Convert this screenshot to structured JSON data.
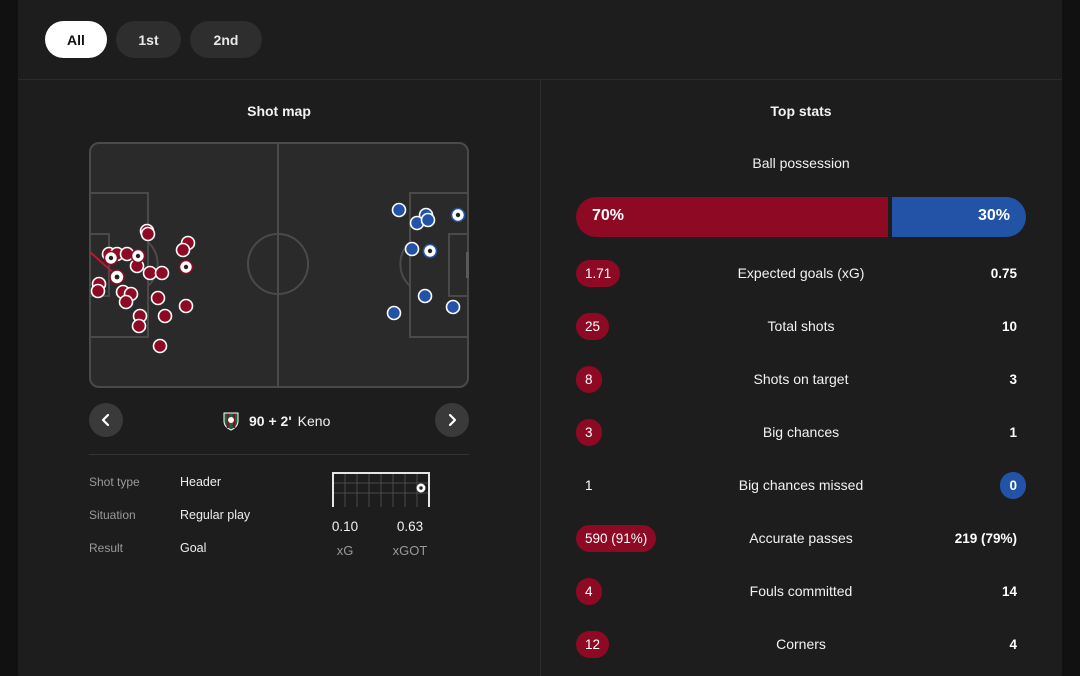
{
  "periods": [
    {
      "label": "All",
      "active": true
    },
    {
      "label": "1st",
      "active": false
    },
    {
      "label": "2nd",
      "active": false
    }
  ],
  "shot_map": {
    "title": "Shot map",
    "selected_shot": {
      "minute": "90 + 2'",
      "player": "Keno",
      "details": [
        {
          "label": "Shot type",
          "value": "Header"
        },
        {
          "label": "Situation",
          "value": "Regular play"
        },
        {
          "label": "Result",
          "value": "Goal"
        }
      ],
      "xg": {
        "value": "0.10",
        "label": "xG"
      },
      "xgot": {
        "value": "0.63",
        "label": "xGOT"
      }
    },
    "colors": {
      "home": "#8e0a24",
      "away": "#2253a6"
    },
    "icons": {
      "prev": "chevron-left-icon",
      "next": "chevron-right-icon",
      "crest": "team-crest-icon"
    }
  },
  "top_stats": {
    "title": "Top stats",
    "possession": {
      "label": "Ball possession",
      "home": "70%",
      "away": "30%",
      "home_fraction": 0.7
    },
    "rows": [
      {
        "name": "Expected goals (xG)",
        "home": "1.71",
        "away": "0.75",
        "leader": "home"
      },
      {
        "name": "Total shots",
        "home": "25",
        "away": "10",
        "leader": "home"
      },
      {
        "name": "Shots on target",
        "home": "8",
        "away": "3",
        "leader": "home"
      },
      {
        "name": "Big chances",
        "home": "3",
        "away": "1",
        "leader": "home"
      },
      {
        "name": "Big chances missed",
        "home": "1",
        "away": "0",
        "leader": "away"
      },
      {
        "name": "Accurate passes",
        "home": "590 (91%)",
        "away": "219 (79%)",
        "leader": "home"
      },
      {
        "name": "Fouls committed",
        "home": "4",
        "away": "14",
        "leader": "home"
      },
      {
        "name": "Corners",
        "home": "12",
        "away": "4",
        "leader": "home"
      }
    ]
  }
}
